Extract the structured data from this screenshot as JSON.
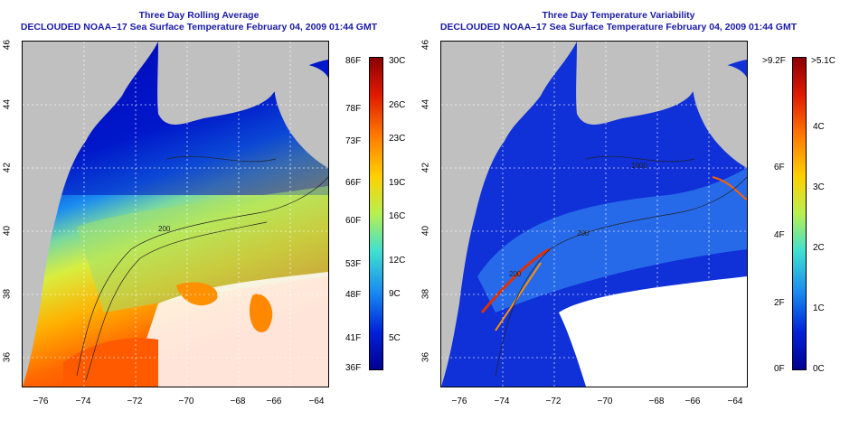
{
  "left_panel": {
    "title_line1": "Three Day Rolling Average",
    "title_line2": "DECLOUDED NOAA–17 Sea Surface Temperature February 04, 2009 01:44 GMT",
    "colorbar_fahrenheit": [
      "86F",
      "78F",
      "73F",
      "66F",
      "60F",
      "53F",
      "48F",
      "41F",
      "36F"
    ],
    "colorbar_celsius": [
      "30C",
      "26C",
      "23C",
      "19C",
      "16C",
      "12C",
      "9C",
      "5C"
    ]
  },
  "right_panel": {
    "title_line1": "Three Day Temperature Variability",
    "title_line2": "DECLOUDED NOAA–17 Sea Surface Temperature February 04, 2009 01:44 GMT",
    "colorbar_fahrenheit": [
      ">9.2F",
      "6F",
      "4F",
      "2F",
      "0F"
    ],
    "colorbar_celsius": [
      ">5.1C",
      "4C",
      "3C",
      "2C",
      "1C",
      "0C"
    ]
  },
  "axes": {
    "latitudes": [
      "46",
      "44",
      "42",
      "40",
      "38",
      "36"
    ],
    "longitudes": [
      "−76",
      "−74",
      "−72",
      "−70",
      "−68",
      "−66",
      "−64"
    ]
  },
  "contour_labels": [
    "200",
    "1000",
    "200",
    "200"
  ],
  "colors": {
    "land": "#c0c0c0",
    "cloud": "#ffffff",
    "title": "#1a1aa6"
  }
}
